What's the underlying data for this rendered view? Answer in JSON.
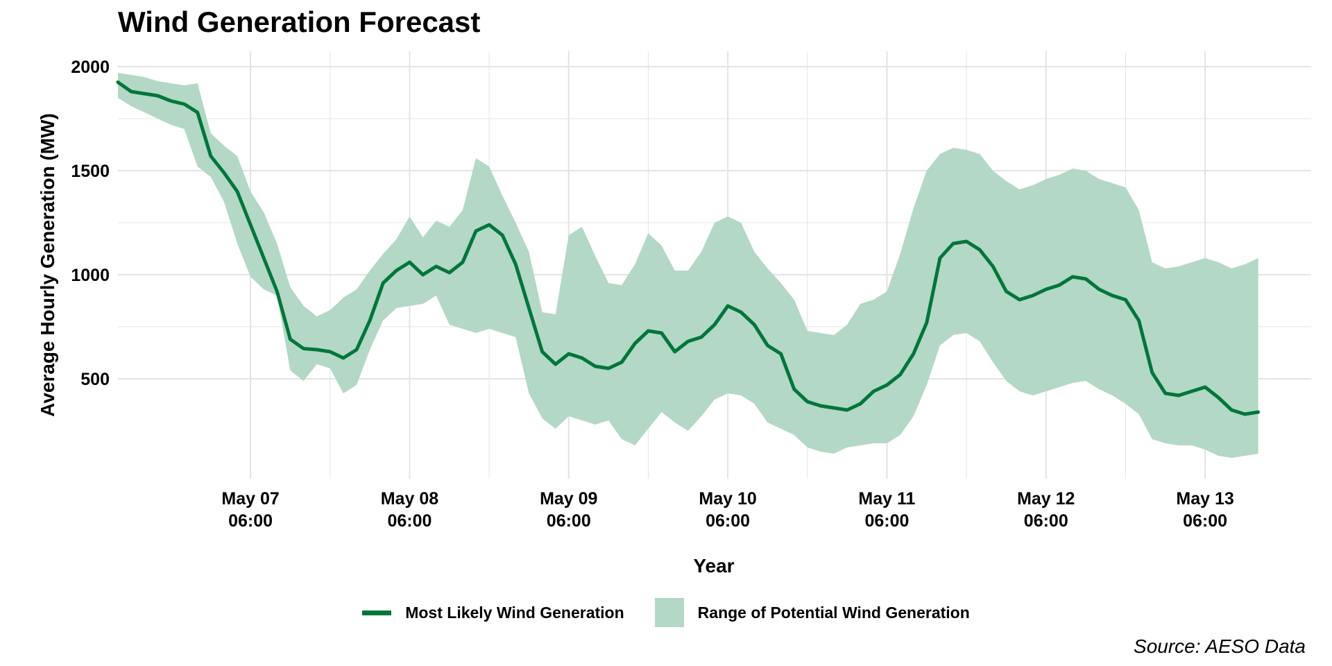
{
  "chart_data": {
    "type": "area",
    "title": "Wind Generation Forecast",
    "xlabel": "Year",
    "ylabel": "Average Hourly Generation (MW)",
    "source": "Source: AESO Data",
    "ylim": [
      20,
      2060
    ],
    "y_ticks": [
      500,
      1000,
      1500,
      2000
    ],
    "x_range": [
      "2024-05-06 10:00",
      "2024-05-13 22:00"
    ],
    "x_ticks": [
      {
        "x": "2024-05-07 06:00",
        "line1": "May 07",
        "line2": "06:00"
      },
      {
        "x": "2024-05-08 06:00",
        "line1": "May 08",
        "line2": "06:00"
      },
      {
        "x": "2024-05-09 06:00",
        "line1": "May 09",
        "line2": "06:00"
      },
      {
        "x": "2024-05-10 06:00",
        "line1": "May 10",
        "line2": "06:00"
      },
      {
        "x": "2024-05-11 06:00",
        "line1": "May 11",
        "line2": "06:00"
      },
      {
        "x": "2024-05-12 06:00",
        "line1": "May 12",
        "line2": "06:00"
      },
      {
        "x": "2024-05-13 06:00",
        "line1": "May 13",
        "line2": "06:00"
      }
    ],
    "grid": true,
    "legend_position": "bottom",
    "colors": {
      "line": "#00763b",
      "band": "#b3d8c5",
      "grid": "#e3e3e3"
    },
    "series": [
      {
        "name": "Most Likely Wind Generation",
        "type": "line",
        "points": [
          [
            "2024-05-06 10:00",
            1925
          ],
          [
            "2024-05-06 12:00",
            1880
          ],
          [
            "2024-05-06 14:00",
            1870
          ],
          [
            "2024-05-06 16:00",
            1860
          ],
          [
            "2024-05-06 18:00",
            1835
          ],
          [
            "2024-05-06 20:00",
            1820
          ],
          [
            "2024-05-06 22:00",
            1780
          ],
          [
            "2024-05-07 00:00",
            1570
          ],
          [
            "2024-05-07 02:00",
            1490
          ],
          [
            "2024-05-07 04:00",
            1400
          ],
          [
            "2024-05-07 06:00",
            1240
          ],
          [
            "2024-05-07 08:00",
            1080
          ],
          [
            "2024-05-07 10:00",
            920
          ],
          [
            "2024-05-07 12:00",
            690
          ],
          [
            "2024-05-07 14:00",
            645
          ],
          [
            "2024-05-07 16:00",
            640
          ],
          [
            "2024-05-07 18:00",
            630
          ],
          [
            "2024-05-07 20:00",
            600
          ],
          [
            "2024-05-07 22:00",
            640
          ],
          [
            "2024-05-08 00:00",
            780
          ],
          [
            "2024-05-08 02:00",
            960
          ],
          [
            "2024-05-08 04:00",
            1020
          ],
          [
            "2024-05-08 06:00",
            1060
          ],
          [
            "2024-05-08 08:00",
            1000
          ],
          [
            "2024-05-08 10:00",
            1040
          ],
          [
            "2024-05-08 12:00",
            1010
          ],
          [
            "2024-05-08 14:00",
            1060
          ],
          [
            "2024-05-08 16:00",
            1210
          ],
          [
            "2024-05-08 18:00",
            1240
          ],
          [
            "2024-05-08 20:00",
            1190
          ],
          [
            "2024-05-08 22:00",
            1050
          ],
          [
            "2024-05-09 00:00",
            840
          ],
          [
            "2024-05-09 02:00",
            630
          ],
          [
            "2024-05-09 04:00",
            570
          ],
          [
            "2024-05-09 06:00",
            620
          ],
          [
            "2024-05-09 08:00",
            600
          ],
          [
            "2024-05-09 10:00",
            560
          ],
          [
            "2024-05-09 12:00",
            550
          ],
          [
            "2024-05-09 14:00",
            580
          ],
          [
            "2024-05-09 16:00",
            670
          ],
          [
            "2024-05-09 18:00",
            730
          ],
          [
            "2024-05-09 20:00",
            720
          ],
          [
            "2024-05-09 22:00",
            630
          ],
          [
            "2024-05-10 00:00",
            680
          ],
          [
            "2024-05-10 02:00",
            700
          ],
          [
            "2024-05-10 04:00",
            760
          ],
          [
            "2024-05-10 06:00",
            850
          ],
          [
            "2024-05-10 08:00",
            820
          ],
          [
            "2024-05-10 10:00",
            760
          ],
          [
            "2024-05-10 12:00",
            660
          ],
          [
            "2024-05-10 14:00",
            620
          ],
          [
            "2024-05-10 16:00",
            450
          ],
          [
            "2024-05-10 18:00",
            390
          ],
          [
            "2024-05-10 20:00",
            370
          ],
          [
            "2024-05-10 22:00",
            360
          ],
          [
            "2024-05-11 00:00",
            350
          ],
          [
            "2024-05-11 02:00",
            380
          ],
          [
            "2024-05-11 04:00",
            440
          ],
          [
            "2024-05-11 06:00",
            470
          ],
          [
            "2024-05-11 08:00",
            520
          ],
          [
            "2024-05-11 10:00",
            620
          ],
          [
            "2024-05-11 12:00",
            770
          ],
          [
            "2024-05-11 14:00",
            1080
          ],
          [
            "2024-05-11 16:00",
            1150
          ],
          [
            "2024-05-11 18:00",
            1160
          ],
          [
            "2024-05-11 20:00",
            1120
          ],
          [
            "2024-05-11 22:00",
            1040
          ],
          [
            "2024-05-12 00:00",
            920
          ],
          [
            "2024-05-12 02:00",
            880
          ],
          [
            "2024-05-12 04:00",
            900
          ],
          [
            "2024-05-12 06:00",
            930
          ],
          [
            "2024-05-12 08:00",
            950
          ],
          [
            "2024-05-12 10:00",
            990
          ],
          [
            "2024-05-12 12:00",
            980
          ],
          [
            "2024-05-12 14:00",
            930
          ],
          [
            "2024-05-12 16:00",
            900
          ],
          [
            "2024-05-12 18:00",
            880
          ],
          [
            "2024-05-12 20:00",
            780
          ],
          [
            "2024-05-12 22:00",
            530
          ],
          [
            "2024-05-13 00:00",
            430
          ],
          [
            "2024-05-13 02:00",
            420
          ],
          [
            "2024-05-13 04:00",
            440
          ],
          [
            "2024-05-13 06:00",
            460
          ],
          [
            "2024-05-13 08:00",
            410
          ],
          [
            "2024-05-13 10:00",
            350
          ],
          [
            "2024-05-13 12:00",
            330
          ],
          [
            "2024-05-13 14:00",
            340
          ]
        ]
      },
      {
        "name": "Range of Potential Wind Generation",
        "type": "band",
        "points": [
          [
            "2024-05-06 10:00",
            1850,
            1970
          ],
          [
            "2024-05-06 12:00",
            1810,
            1960
          ],
          [
            "2024-05-06 14:00",
            1780,
            1950
          ],
          [
            "2024-05-06 16:00",
            1750,
            1930
          ],
          [
            "2024-05-06 18:00",
            1720,
            1920
          ],
          [
            "2024-05-06 20:00",
            1700,
            1910
          ],
          [
            "2024-05-06 22:00",
            1520,
            1920
          ],
          [
            "2024-05-07 00:00",
            1470,
            1680
          ],
          [
            "2024-05-07 02:00",
            1350,
            1620
          ],
          [
            "2024-05-07 04:00",
            1150,
            1570
          ],
          [
            "2024-05-07 06:00",
            990,
            1400
          ],
          [
            "2024-05-07 08:00",
            930,
            1300
          ],
          [
            "2024-05-07 10:00",
            900,
            1150
          ],
          [
            "2024-05-07 12:00",
            540,
            940
          ],
          [
            "2024-05-07 14:00",
            490,
            850
          ],
          [
            "2024-05-07 16:00",
            570,
            800
          ],
          [
            "2024-05-07 18:00",
            550,
            830
          ],
          [
            "2024-05-07 20:00",
            430,
            890
          ],
          [
            "2024-05-07 22:00",
            470,
            930
          ],
          [
            "2024-05-08 00:00",
            640,
            1020
          ],
          [
            "2024-05-08 02:00",
            780,
            1100
          ],
          [
            "2024-05-08 04:00",
            840,
            1170
          ],
          [
            "2024-05-08 06:00",
            850,
            1280
          ],
          [
            "2024-05-08 08:00",
            860,
            1180
          ],
          [
            "2024-05-08 10:00",
            900,
            1260
          ],
          [
            "2024-05-08 12:00",
            760,
            1230
          ],
          [
            "2024-05-08 14:00",
            740,
            1310
          ],
          [
            "2024-05-08 16:00",
            720,
            1560
          ],
          [
            "2024-05-08 18:00",
            740,
            1520
          ],
          [
            "2024-05-08 20:00",
            720,
            1380
          ],
          [
            "2024-05-08 22:00",
            700,
            1250
          ],
          [
            "2024-05-09 00:00",
            430,
            1110
          ],
          [
            "2024-05-09 02:00",
            310,
            820
          ],
          [
            "2024-05-09 04:00",
            260,
            810
          ],
          [
            "2024-05-09 06:00",
            320,
            1190
          ],
          [
            "2024-05-09 08:00",
            300,
            1230
          ],
          [
            "2024-05-09 10:00",
            280,
            1090
          ],
          [
            "2024-05-09 12:00",
            300,
            960
          ],
          [
            "2024-05-09 14:00",
            210,
            950
          ],
          [
            "2024-05-09 16:00",
            180,
            1050
          ],
          [
            "2024-05-09 18:00",
            260,
            1200
          ],
          [
            "2024-05-09 20:00",
            340,
            1140
          ],
          [
            "2024-05-09 22:00",
            290,
            1020
          ],
          [
            "2024-05-10 00:00",
            250,
            1020
          ],
          [
            "2024-05-10 02:00",
            320,
            1110
          ],
          [
            "2024-05-10 04:00",
            400,
            1250
          ],
          [
            "2024-05-10 06:00",
            430,
            1280
          ],
          [
            "2024-05-10 08:00",
            420,
            1250
          ],
          [
            "2024-05-10 10:00",
            380,
            1110
          ],
          [
            "2024-05-10 12:00",
            290,
            1030
          ],
          [
            "2024-05-10 14:00",
            260,
            960
          ],
          [
            "2024-05-10 16:00",
            230,
            880
          ],
          [
            "2024-05-10 18:00",
            170,
            730
          ],
          [
            "2024-05-10 20:00",
            150,
            720
          ],
          [
            "2024-05-10 22:00",
            140,
            710
          ],
          [
            "2024-05-11 00:00",
            170,
            760
          ],
          [
            "2024-05-11 02:00",
            180,
            860
          ],
          [
            "2024-05-11 04:00",
            190,
            880
          ],
          [
            "2024-05-11 06:00",
            190,
            920
          ],
          [
            "2024-05-11 08:00",
            230,
            1100
          ],
          [
            "2024-05-11 10:00",
            320,
            1320
          ],
          [
            "2024-05-11 12:00",
            470,
            1500
          ],
          [
            "2024-05-11 14:00",
            660,
            1580
          ],
          [
            "2024-05-11 16:00",
            710,
            1610
          ],
          [
            "2024-05-11 18:00",
            720,
            1600
          ],
          [
            "2024-05-11 20:00",
            680,
            1580
          ],
          [
            "2024-05-11 22:00",
            580,
            1500
          ],
          [
            "2024-05-12 00:00",
            490,
            1450
          ],
          [
            "2024-05-12 02:00",
            440,
            1410
          ],
          [
            "2024-05-12 04:00",
            420,
            1430
          ],
          [
            "2024-05-12 06:00",
            440,
            1460
          ],
          [
            "2024-05-12 08:00",
            460,
            1480
          ],
          [
            "2024-05-12 10:00",
            480,
            1510
          ],
          [
            "2024-05-12 12:00",
            490,
            1500
          ],
          [
            "2024-05-12 14:00",
            450,
            1460
          ],
          [
            "2024-05-12 16:00",
            420,
            1440
          ],
          [
            "2024-05-12 18:00",
            380,
            1420
          ],
          [
            "2024-05-12 20:00",
            330,
            1310
          ],
          [
            "2024-05-12 22:00",
            210,
            1060
          ],
          [
            "2024-05-13 00:00",
            190,
            1030
          ],
          [
            "2024-05-13 02:00",
            180,
            1040
          ],
          [
            "2024-05-13 04:00",
            180,
            1060
          ],
          [
            "2024-05-13 06:00",
            160,
            1080
          ],
          [
            "2024-05-13 08:00",
            130,
            1060
          ],
          [
            "2024-05-13 10:00",
            120,
            1030
          ],
          [
            "2024-05-13 12:00",
            130,
            1050
          ],
          [
            "2024-05-13 14:00",
            140,
            1080
          ]
        ]
      }
    ]
  }
}
